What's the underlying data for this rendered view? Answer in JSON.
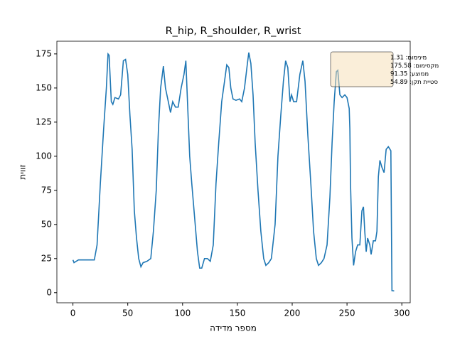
{
  "chart_data": {
    "type": "line",
    "title": "R_hip, R_shoulder, R_wrist",
    "x_label": "מספר מדידה",
    "y_label": "זווית",
    "x": [
      0,
      1,
      5,
      13,
      19.5,
      22,
      25,
      28,
      30.5,
      32,
      33,
      35,
      36.4,
      38.3,
      41.5,
      43.5,
      46,
      48,
      50,
      52,
      54,
      56,
      58,
      60,
      62,
      64,
      67.5,
      71,
      73.4,
      76,
      78,
      80,
      82.5,
      84.4,
      87,
      89,
      91,
      93.5,
      96,
      98.7,
      101.3,
      103,
      104.5,
      106.5,
      108.4,
      111,
      113.6,
      115.6,
      117.5,
      120,
      122.7,
      125.3,
      128,
      130.5,
      133,
      135.7,
      138.3,
      140.3,
      142.2,
      144,
      146,
      148.7,
      152,
      154,
      156.5,
      159,
      160.4,
      162.3,
      164.3,
      166.2,
      168.8,
      171.4,
      174,
      176,
      178.6,
      181,
      184.4,
      187,
      189.6,
      192,
      194,
      196,
      198,
      199.4,
      201.3,
      204,
      207,
      209.7,
      211.7,
      214.3,
      217,
      219.5,
      222,
      224,
      226.6,
      229,
      231.8,
      234.4,
      236.4,
      238.3,
      240.3,
      241.6,
      243.5,
      245.5,
      248,
      250,
      252,
      252.6,
      253.2,
      254.5,
      256,
      257.8,
      259.7,
      261.7,
      263.6,
      265,
      266.2,
      267.5,
      268.8,
      270.8,
      272,
      274,
      276,
      277.3,
      278.6,
      280,
      281.8,
      283.8,
      285.7,
      287.7,
      290,
      291,
      293
    ],
    "series": [
      {
        "name": "R_hip, R_shoulder, R_wrist",
        "color": "#1f77b4",
        "values": [
          24,
          22,
          24,
          24,
          24,
          35,
          80,
          120,
          150,
          175,
          174,
          140,
          138,
          143,
          142,
          145,
          170,
          171,
          160,
          130,
          105,
          60,
          40,
          25,
          19,
          22,
          23,
          25,
          45,
          75,
          120,
          150,
          166,
          150,
          140,
          132,
          140,
          136,
          136,
          150,
          160,
          170,
          140,
          100,
          80,
          55,
          30,
          18,
          18,
          25,
          25,
          23,
          35,
          80,
          110,
          140,
          155,
          167,
          165,
          150,
          142,
          141,
          142,
          140,
          150,
          167,
          176,
          168,
          145,
          110,
          75,
          45,
          25,
          20,
          22,
          25,
          50,
          100,
          130,
          155,
          170,
          165,
          140,
          145,
          140,
          140,
          160,
          170,
          155,
          115,
          80,
          45,
          25,
          20,
          22,
          25,
          35,
          70,
          110,
          140,
          162,
          163,
          145,
          143,
          145,
          143,
          135,
          120,
          80,
          40,
          20,
          30,
          35,
          35,
          60,
          63,
          45,
          30,
          40,
          35,
          28,
          38,
          38,
          45,
          85,
          97,
          92,
          88,
          105,
          107,
          104,
          1.5,
          1.31
        ]
      }
    ],
    "xlim": [
      -14.65,
      307.65
    ],
    "ylim": [
      -7.4,
      184.3
    ],
    "xticks": [
      0,
      50,
      100,
      150,
      200,
      250,
      300
    ],
    "yticks": [
      0,
      25,
      50,
      75,
      100,
      125,
      150,
      175
    ],
    "stats": [
      "מינימום: 1.31",
      "מקסימום: 175.58",
      "ממוצע: 91.35",
      "סטיית תקן: 54.89"
    ]
  }
}
